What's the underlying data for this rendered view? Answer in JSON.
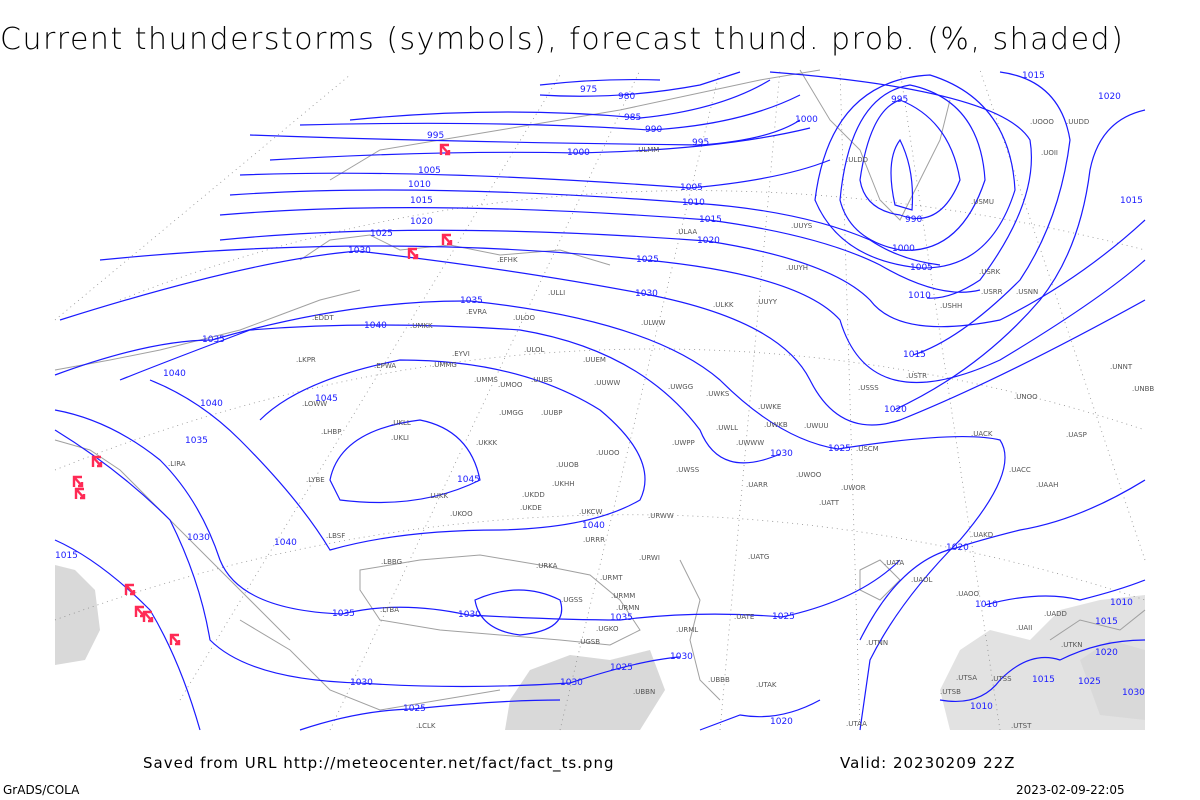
{
  "title": "Current thunderstorms (symbols), forecast thund. prob. (%, shaded)",
  "footer": {
    "source": "Saved from URL http://meteocenter.net/fact/fact_ts.png",
    "valid": "Valid: 20230209 22Z",
    "credit": "GrADS/COLA",
    "timestamp": "2023-02-09-22:05"
  },
  "colors": {
    "isobar": "#1a1aff",
    "coastline": "#a0a0a0",
    "thunderstorm_symbol": "#ff2a55",
    "probability_shading": "#d9d9d9"
  },
  "legend_symbol": "thunderstorm-icon",
  "isobar_labels": [
    "975",
    "980",
    "985",
    "990",
    "995",
    "995",
    "1000",
    "1000",
    "995",
    "990",
    "1000",
    "1005",
    "1010",
    "1015",
    "1020",
    "1025",
    "1030",
    "1005",
    "1005",
    "1010",
    "1010",
    "1015",
    "1015",
    "1020",
    "1020",
    "1025",
    "1025",
    "1030",
    "1030",
    "1035",
    "1035",
    "1040",
    "1040",
    "1040",
    "1045",
    "1045",
    "1035",
    "1030",
    "1040",
    "1040",
    "1035",
    "1030",
    "1035",
    "1030",
    "1030",
    "1030",
    "1025",
    "1025",
    "1025",
    "1020",
    "1020",
    "1015",
    "1015",
    "1015",
    "1020",
    "1010",
    "1015",
    "1010",
    "1015",
    "1025",
    "1020",
    "1030",
    "1010"
  ],
  "stations": [
    ".EFHK",
    ".ULLI",
    ".ULAA",
    ".ULOO",
    ".EVRA",
    ".EDDT",
    ".UMKK",
    ".ULOL",
    ".UUEM",
    ".ULWW",
    ".ULKK",
    ".UUYY",
    ".UUYH",
    ".UUYS",
    ".ULDD",
    ".ULMM",
    ".EPWA",
    ".UMMG",
    ".EYVI",
    ".UMMS",
    ".UMOO",
    ".UUBS",
    ".UUWW",
    ".UWGG",
    ".UWKS",
    ".UMGG",
    ".UUBP",
    ".UKLL",
    ".UKLI",
    ".UKKK",
    ".UWKE",
    ".UWKB",
    ".UWUU",
    ".UWPP",
    ".UWWW",
    ".UWLL",
    ".UUOO",
    ".UUOB",
    ".UWSS",
    ".UWOO",
    ".UWOR",
    ".UATT",
    ".UARR",
    ".UKHH",
    ".UKDD",
    ".UKDE",
    ".UKCW",
    ".UKOO",
    ".LUKK",
    ".URRR",
    ".URWI",
    ".URWW",
    ".URMT",
    ".URMM",
    ".URMN",
    ".URML",
    ".UGSS",
    ".UGSB",
    ".UGKO",
    ".UBBB",
    ".UBBN",
    ".UTAK",
    ".UATE",
    ".UATG",
    ".UATA",
    ".UAOL",
    ".UACC",
    ".UACK",
    ".UASP",
    ".UAAH",
    ".UAKD",
    ".UAOO",
    ".UADD",
    ".UAII",
    ".UTKN",
    ".UTSS",
    ".UTSA",
    ".UTSB",
    ".UTST",
    ".UTAA",
    ".UTNN",
    ".UNNT",
    ".UNBB",
    ".UNOO",
    ".USTR",
    ".USSS",
    ".USCM",
    ".USRR",
    ".USNN",
    ".USRK",
    ".USHH",
    ".USMU",
    ".UOOO",
    ".UOII",
    ".LBSF",
    ".LBBG",
    ".LYBE",
    ".LHBP",
    ".LKPR",
    ".LOWW",
    ".LIRA",
    ".URKA",
    ".LTBA",
    ".LCLK",
    ".UUDD"
  ]
}
